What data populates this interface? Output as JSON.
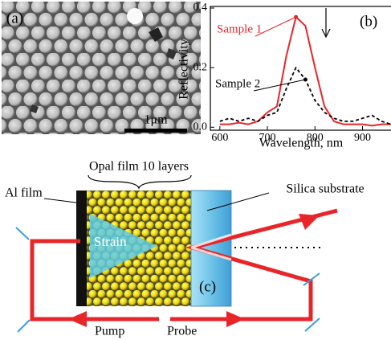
{
  "panel_a": {
    "label": "(a)",
    "scale_bar": "1μm"
  },
  "chart_data": {
    "type": "line",
    "label": "(b)",
    "x_label": "Wavelength, nm",
    "y_label": "Reflectivity",
    "x": [
      600,
      620,
      640,
      660,
      680,
      700,
      720,
      740,
      760,
      780,
      800,
      820,
      840,
      860,
      880,
      900,
      920,
      940,
      960
    ],
    "series": [
      {
        "name": "Sample 1",
        "color": "#e8262a",
        "line_style": "solid",
        "values": [
          0.01,
          0.01,
          0.015,
          0.01,
          0.02,
          0.05,
          0.07,
          0.24,
          0.37,
          0.34,
          0.2,
          0.07,
          0.02,
          0.01,
          0.01,
          0.01,
          0.005,
          0.01,
          0.01
        ]
      },
      {
        "name": "Sample 2",
        "color": "#000000",
        "line_style": "dashed",
        "values": [
          0.02,
          0.03,
          0.02,
          0.03,
          0.02,
          0.04,
          0.05,
          0.13,
          0.2,
          0.16,
          0.09,
          0.05,
          0.03,
          0.02,
          0.02,
          0.03,
          0.04,
          0.02,
          0.01
        ]
      }
    ],
    "xlim": [
      580,
      960
    ],
    "ylim": [
      -0.01,
      0.4
    ],
    "xticks": [
      600,
      700,
      800,
      900
    ],
    "yticks": [
      {
        "value": 0,
        "label": "0.0"
      },
      0.2,
      0.4
    ]
  },
  "panel_c": {
    "label": "(c)",
    "opal_film": "Opal film 10 layers",
    "al_film": "Al film",
    "substrate": "Silica substrate",
    "strain": "Strain",
    "pump": "Pump",
    "probe": "Probe"
  }
}
